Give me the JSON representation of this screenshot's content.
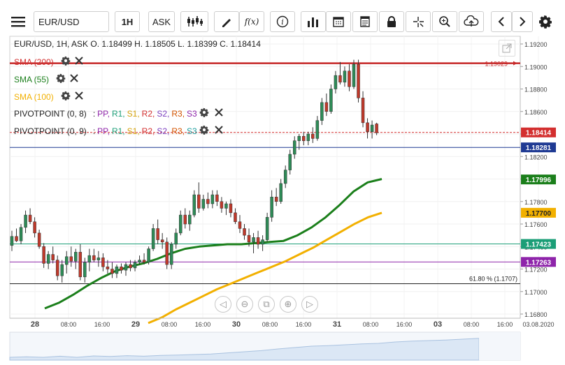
{
  "toolbar": {
    "symbol": "EUR/USD",
    "timeframe": "1H",
    "price_type": "ASK",
    "function_label": "f(x)"
  },
  "header": {
    "ohlc": "EUR/USD, 1H, ASK   O. 1.18499  H. 1.18505  L. 1.18399  C. 1.18414"
  },
  "indicators": [
    {
      "name": "SMA (200)",
      "color": "#d32f2f"
    },
    {
      "name": "SMA (55)",
      "color": "#1b7f1b"
    },
    {
      "name": "SMA (100)",
      "color": "#f2b000"
    }
  ],
  "pivots": [
    {
      "name": "PIVOTPOINT (0, 8)",
      "colors": [
        "#8e24aa",
        "#1b9e77",
        "#d4a20a",
        "#d32f2f",
        "#7b3fbf",
        "#d35400",
        "#8e24aa"
      ]
    },
    {
      "name": "PIVOTPOINT (0, 9)",
      "colors": [
        "#8e24aa",
        "#1b9e77",
        "#d4a20a",
        "#d32f2f",
        "#7b3fbf",
        "#d35400",
        "#1b9e9e"
      ]
    }
  ],
  "pivot_labels": [
    "PP,",
    "R1,",
    "S1,",
    "R2,",
    "S2,",
    "R3,",
    "S3"
  ],
  "chart_data": {
    "type": "candlestick",
    "symbol": "EUR/USD",
    "interval": "1H",
    "ylim": [
      1.168,
      1.192
    ],
    "y_ticks": [
      "1.19200",
      "1.19000",
      "1.18800",
      "1.18600",
      "1.18400",
      "1.18200",
      "1.18000",
      "1.17800",
      "1.17600",
      "1.17400",
      "1.17200",
      "1.17000",
      "1.16800"
    ],
    "x_ticks": [
      "28",
      "08:00",
      "16:00",
      "29",
      "08:00",
      "16:00",
      "30",
      "08:00",
      "16:00",
      "31",
      "08:00",
      "16:00",
      "03",
      "08:00",
      "16:00",
      "03.08.2020"
    ],
    "price_labels": [
      {
        "value": "1.18414",
        "bg": "#d32f2f",
        "fg": "#ffffff"
      },
      {
        "value": "1.18281",
        "bg": "#1f3a93",
        "fg": "#ffffff"
      },
      {
        "value": "1.17996",
        "bg": "#1b7f1b",
        "fg": "#ffffff"
      },
      {
        "value": "1.17700",
        "bg": "#f2b000",
        "fg": "#222222"
      },
      {
        "value": "1.17423",
        "bg": "#1b9e77",
        "fg": "#ffffff"
      },
      {
        "value": "1.17263",
        "bg": "#8e24aa",
        "fg": "#ffffff"
      }
    ],
    "horizontal_lines": [
      {
        "value": 1.19029,
        "color": "#c62828",
        "label": "1.19029"
      },
      {
        "value": 1.18414,
        "color": "#d32f2f",
        "style": "dashed"
      },
      {
        "value": 1.18281,
        "color": "#1f3a93"
      },
      {
        "value": 1.17423,
        "color": "#1b9e77"
      },
      {
        "value": 1.17263,
        "color": "#8e24aa"
      },
      {
        "value": 1.1707,
        "color": "#222222"
      }
    ],
    "fib_label": "61.80 % (1.1707)",
    "candles": [
      [
        1.1741,
        1.1754,
        1.1736,
        1.1749
      ],
      [
        1.1749,
        1.1756,
        1.1744,
        1.1745
      ],
      [
        1.1745,
        1.176,
        1.1742,
        1.1757
      ],
      [
        1.1757,
        1.1772,
        1.1752,
        1.1768
      ],
      [
        1.1768,
        1.1774,
        1.176,
        1.1762
      ],
      [
        1.1762,
        1.1766,
        1.1748,
        1.1752
      ],
      [
        1.1752,
        1.1755,
        1.1738,
        1.174
      ],
      [
        1.174,
        1.1743,
        1.1721,
        1.1725
      ],
      [
        1.1725,
        1.1736,
        1.172,
        1.1733
      ],
      [
        1.1733,
        1.174,
        1.1725,
        1.1728
      ],
      [
        1.1728,
        1.1732,
        1.171,
        1.1714
      ],
      [
        1.1714,
        1.1728,
        1.1708,
        1.1724
      ],
      [
        1.1724,
        1.1736,
        1.1716,
        1.1731
      ],
      [
        1.1731,
        1.174,
        1.1722,
        1.1727
      ],
      [
        1.1727,
        1.1738,
        1.172,
        1.1735
      ],
      [
        1.1735,
        1.1742,
        1.171,
        1.1713
      ],
      [
        1.1713,
        1.173,
        1.1708,
        1.1726
      ],
      [
        1.1726,
        1.1738,
        1.1718,
        1.1732
      ],
      [
        1.1732,
        1.1738,
        1.1726,
        1.1728
      ],
      [
        1.1728,
        1.1736,
        1.1722,
        1.173
      ],
      [
        1.173,
        1.1734,
        1.1718,
        1.1722
      ],
      [
        1.1722,
        1.1728,
        1.1716,
        1.172
      ],
      [
        1.172,
        1.1726,
        1.1712,
        1.1716
      ],
      [
        1.1716,
        1.1724,
        1.1712,
        1.1722
      ],
      [
        1.1722,
        1.1725,
        1.1716,
        1.1719
      ],
      [
        1.1719,
        1.1726,
        1.1714,
        1.1724
      ],
      [
        1.1724,
        1.1728,
        1.1718,
        1.1721
      ],
      [
        1.1721,
        1.1728,
        1.1718,
        1.1726
      ],
      [
        1.1726,
        1.1732,
        1.1724,
        1.1728
      ],
      [
        1.1728,
        1.1734,
        1.1724,
        1.1726
      ],
      [
        1.1726,
        1.174,
        1.1724,
        1.1738
      ],
      [
        1.1738,
        1.176,
        1.1736,
        1.1756
      ],
      [
        1.1756,
        1.1764,
        1.1742,
        1.1746
      ],
      [
        1.1746,
        1.1752,
        1.1738,
        1.1744
      ],
      [
        1.1744,
        1.1748,
        1.172,
        1.1724
      ],
      [
        1.1724,
        1.1744,
        1.172,
        1.1742
      ],
      [
        1.1742,
        1.1756,
        1.1738,
        1.1752
      ],
      [
        1.1752,
        1.1772,
        1.175,
        1.1768
      ],
      [
        1.1768,
        1.1774,
        1.1756,
        1.176
      ],
      [
        1.176,
        1.1772,
        1.1754,
        1.1768
      ],
      [
        1.1768,
        1.179,
        1.1766,
        1.1786
      ],
      [
        1.1786,
        1.1797,
        1.177,
        1.1774
      ],
      [
        1.1774,
        1.1786,
        1.1772,
        1.1782
      ],
      [
        1.1782,
        1.1788,
        1.1774,
        1.1778
      ],
      [
        1.1778,
        1.179,
        1.1774,
        1.1786
      ],
      [
        1.1786,
        1.179,
        1.1776,
        1.178
      ],
      [
        1.178,
        1.1784,
        1.177,
        1.1774
      ],
      [
        1.1774,
        1.178,
        1.1768,
        1.1778
      ],
      [
        1.1778,
        1.1782,
        1.1766,
        1.177
      ],
      [
        1.177,
        1.1774,
        1.176,
        1.1762
      ],
      [
        1.1762,
        1.1768,
        1.1752,
        1.1756
      ],
      [
        1.1756,
        1.176,
        1.1746,
        1.175
      ],
      [
        1.175,
        1.1756,
        1.174,
        1.1744
      ],
      [
        1.1744,
        1.1752,
        1.1734,
        1.1748
      ],
      [
        1.1748,
        1.1754,
        1.1738,
        1.1742
      ],
      [
        1.1742,
        1.175,
        1.1736,
        1.1746
      ],
      [
        1.1746,
        1.177,
        1.1744,
        1.1766
      ],
      [
        1.1766,
        1.179,
        1.1762,
        1.1784
      ],
      [
        1.1784,
        1.1792,
        1.1776,
        1.178
      ],
      [
        1.178,
        1.18,
        1.1778,
        1.1796
      ],
      [
        1.1796,
        1.1812,
        1.1792,
        1.1808
      ],
      [
        1.1808,
        1.1826,
        1.1804,
        1.1822
      ],
      [
        1.1822,
        1.1838,
        1.1818,
        1.1834
      ],
      [
        1.1834,
        1.184,
        1.1826,
        1.1838
      ],
      [
        1.1838,
        1.1842,
        1.183,
        1.1834
      ],
      [
        1.1834,
        1.1842,
        1.183,
        1.184
      ],
      [
        1.184,
        1.1846,
        1.1832,
        1.1836
      ],
      [
        1.1836,
        1.1856,
        1.1834,
        1.1852
      ],
      [
        1.1852,
        1.1872,
        1.1848,
        1.1868
      ],
      [
        1.1868,
        1.1876,
        1.1856,
        1.186
      ],
      [
        1.186,
        1.1884,
        1.1858,
        1.188
      ],
      [
        1.188,
        1.1896,
        1.1876,
        1.1892
      ],
      [
        1.1892,
        1.1904,
        1.1884,
        1.1886
      ],
      [
        1.1886,
        1.19,
        1.1882,
        1.1896
      ],
      [
        1.1896,
        1.1902,
        1.1878,
        1.1882
      ],
      [
        1.1882,
        1.1906,
        1.188,
        1.1902
      ],
      [
        1.1902,
        1.1906,
        1.1868,
        1.1872
      ],
      [
        1.1872,
        1.1878,
        1.1846,
        1.185
      ],
      [
        1.185,
        1.1854,
        1.1836,
        1.1842
      ],
      [
        1.1842,
        1.1852,
        1.1836,
        1.1848
      ],
      [
        1.1849,
        1.185,
        1.1839,
        1.1841
      ]
    ],
    "sma55": [
      1.1685,
      1.169,
      1.1697,
      1.1705,
      1.1712,
      1.1718,
      1.1722,
      1.1725,
      1.1729,
      1.1734,
      1.1738,
      1.174,
      1.1741,
      1.1742,
      1.1742,
      1.1743,
      1.1744,
      1.1745,
      1.175,
      1.1757,
      1.1766,
      1.1777,
      1.1789,
      1.1797,
      1.18
    ],
    "sma100": [
      1.1672,
      1.1677,
      1.1684,
      1.169,
      1.1696,
      1.1702,
      1.1707,
      1.1712,
      1.1717,
      1.1722,
      1.1727,
      1.1733,
      1.1739,
      1.1746,
      1.1753,
      1.176,
      1.1766,
      1.177
    ],
    "sma55_start": 15,
    "sma100_start": 30
  },
  "nav": {
    "prev": "◁",
    "zoom_out": "⊖",
    "reset": "⧉",
    "zoom_in": "⊕",
    "next": "▷"
  }
}
